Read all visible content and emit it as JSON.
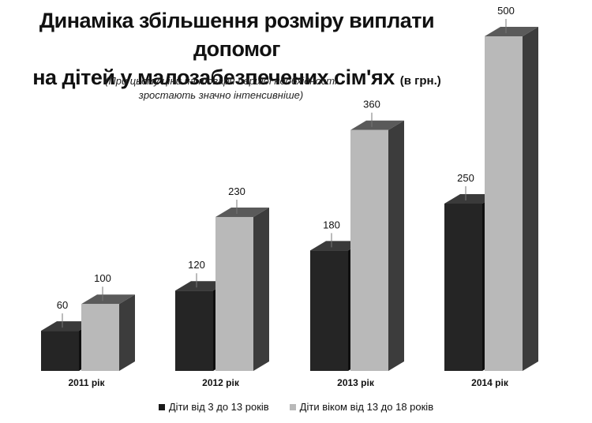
{
  "title_line1": "Динаміка збільшення розміру виплати допомог",
  "title_line2": "на дітей у малозабезпечених сім'ях",
  "title_unit": "(в грн.)",
  "subtitle_line1": "(При цьому ціни на товари першої необхідності",
  "subtitle_line2": "зростають значно інтенсивніше)",
  "colors": {
    "series1_front": "#252525",
    "series1_side": "#0f0f0f",
    "series1_top": "#3a3a3a",
    "series2_front": "#b9b9b9",
    "series2_side": "#3c3c3c",
    "series2_top": "#5a5a5a"
  },
  "chart_data": {
    "type": "bar",
    "categories": [
      "2011 рік",
      "2012 рік",
      "2013 рік",
      "2014 рік"
    ],
    "series": [
      {
        "name": "Діти від 3 до 13 років",
        "values": [
          60,
          120,
          180,
          250
        ]
      },
      {
        "name": "Діти віком від 13 до 18 років",
        "values": [
          100,
          230,
          360,
          500
        ]
      }
    ],
    "ylim": [
      0,
      500
    ],
    "grid": false,
    "legend": "bottom"
  }
}
